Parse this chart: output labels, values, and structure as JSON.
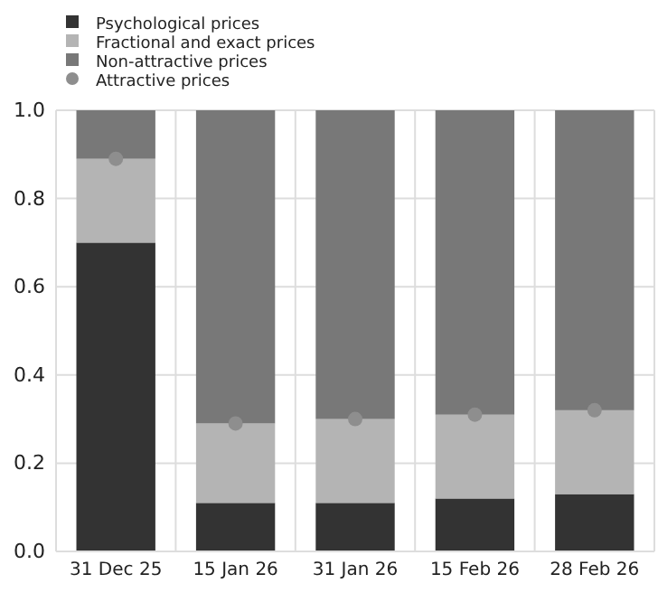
{
  "chart_data": {
    "type": "bar",
    "stacked": true,
    "categories": [
      "31 Dec 25",
      "15 Jan 26",
      "31 Jan 26",
      "15 Feb 26",
      "28 Feb 26"
    ],
    "series": [
      {
        "name": "Psychological prices",
        "color": "#333333",
        "values": [
          0.7,
          0.11,
          0.11,
          0.12,
          0.13
        ]
      },
      {
        "name": "Fractional and exact prices",
        "color": "#b4b4b4",
        "values": [
          0.19,
          0.18,
          0.19,
          0.19,
          0.19
        ]
      },
      {
        "name": "Non-attractive prices",
        "color": "#787878",
        "values": [
          0.11,
          0.71,
          0.7,
          0.69,
          0.68
        ]
      },
      {
        "name": "Attractive prices",
        "type": "scatter",
        "color": "#8e8e8e",
        "x": [
          "31 Dec 25",
          "15 Jan 26",
          "31 Jan 26",
          "15 Feb 26",
          "28 Feb 26"
        ],
        "values": [
          0.89,
          0.29,
          0.3,
          0.31,
          0.32
        ]
      }
    ],
    "ylim": [
      0,
      1
    ],
    "yticks": [
      {
        "value": 0,
        "label": "0.0"
      },
      0.2,
      0.4,
      0.6,
      0.8,
      {
        "value": 1,
        "label": "1.0"
      }
    ],
    "grid": true,
    "legend": "top left",
    "marker": "circle"
  }
}
